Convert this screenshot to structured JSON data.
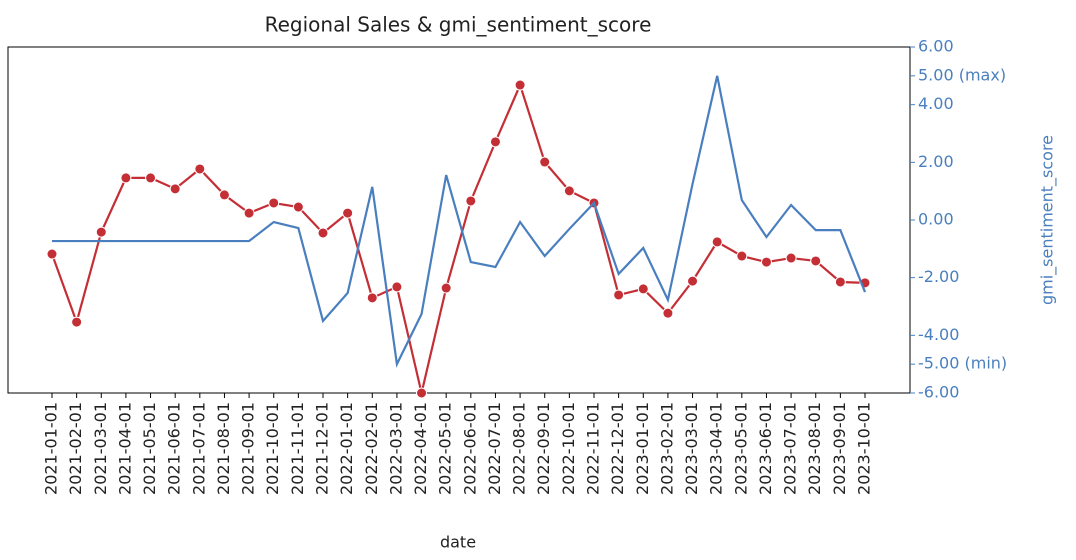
{
  "chart_data": {
    "type": "line",
    "title": "Regional Sales & gmi_sentiment_score",
    "x_label": "date",
    "y2_label": "gmi_sentiment_score",
    "categories": [
      "2021-01-01",
      "2021-02-01",
      "2021-03-01",
      "2021-04-01",
      "2021-05-01",
      "2021-06-01",
      "2021-07-01",
      "2021-08-01",
      "2021-09-01",
      "2021-10-01",
      "2021-11-01",
      "2021-12-01",
      "2022-01-01",
      "2022-02-01",
      "2022-03-01",
      "2022-04-01",
      "2022-05-01",
      "2022-06-01",
      "2022-07-01",
      "2022-08-01",
      "2022-09-01",
      "2022-10-01",
      "2022-11-01",
      "2022-12-01",
      "2023-01-01",
      "2023-02-01",
      "2023-03-01",
      "2023-04-01",
      "2023-05-01",
      "2023-06-01",
      "2023-07-01",
      "2023-08-01",
      "2023-09-01",
      "2023-10-01"
    ],
    "ylim": [
      -6,
      6
    ],
    "y2lim": [
      -6,
      6
    ],
    "y2ticks": [
      {
        "value": 6,
        "label": "6.00"
      },
      {
        "value": 5,
        "label": "5.00 (max)"
      },
      {
        "value": 4,
        "label": "4.00"
      },
      {
        "value": 2,
        "label": "2.00"
      },
      {
        "value": 0,
        "label": "0.00"
      },
      {
        "value": -2,
        "label": "-2.00"
      },
      {
        "value": -4,
        "label": "-4.00"
      },
      {
        "value": -5,
        "label": "-5.00 (min)"
      },
      {
        "value": -6,
        "label": "-6.00"
      }
    ],
    "y2_color": "#4a7fbf",
    "series": [
      {
        "color": "#c42e35",
        "markers": true,
        "values": [
          -1.18,
          -3.54,
          -0.42,
          1.46,
          1.46,
          1.08,
          1.77,
          0.87,
          0.24,
          0.59,
          0.45,
          -0.45,
          0.24,
          -2.7,
          -2.32,
          -6.0,
          -2.36,
          0.66,
          2.71,
          4.68,
          2.01,
          1.01,
          0.59,
          -2.6,
          -2.39,
          -3.23,
          -2.12,
          -0.76,
          -1.25,
          -1.46,
          -1.32,
          -1.42,
          -2.15,
          -2.18
        ]
      },
      {
        "color": "#4a7fbf",
        "axis": "y2",
        "markers": false,
        "values": [
          -0.73,
          -0.73,
          -0.73,
          -0.73,
          -0.73,
          -0.73,
          -0.73,
          -0.73,
          -0.73,
          -0.07,
          -0.28,
          -3.5,
          -2.53,
          1.15,
          -5.0,
          -3.26,
          1.56,
          -1.46,
          -1.63,
          -0.07,
          -1.25,
          -0.31,
          0.59,
          -1.87,
          -0.97,
          -2.77,
          1.25,
          5.0,
          0.69,
          -0.59,
          0.52,
          -0.35,
          -0.35,
          -2.5
        ]
      }
    ]
  }
}
